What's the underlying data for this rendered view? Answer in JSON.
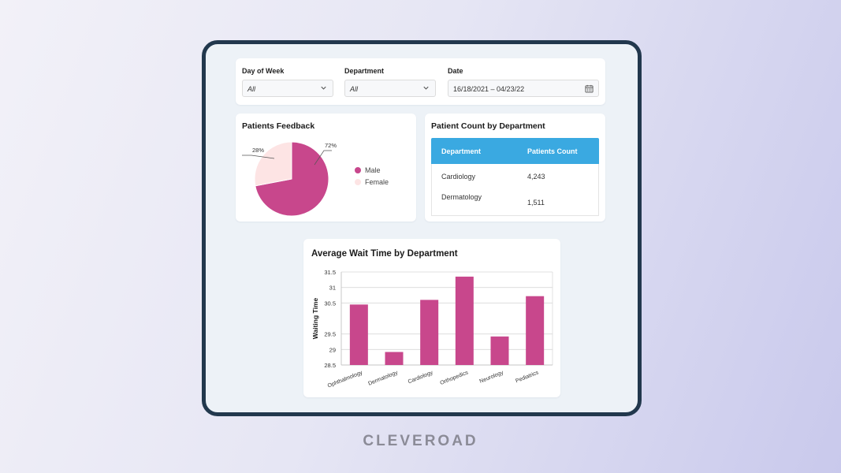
{
  "filters": {
    "day_of_week": {
      "label": "Day of Week",
      "value": "All"
    },
    "department": {
      "label": "Department",
      "value": "All"
    },
    "date": {
      "label": "Date",
      "value": "16/18/2021 – 04/23/22"
    }
  },
  "feedback": {
    "title": "Patients Feedback",
    "slices": [
      {
        "label": "Male",
        "percent": 72,
        "percent_label": "72%",
        "color": "#c8478c"
      },
      {
        "label": "Female",
        "percent": 28,
        "percent_label": "28%",
        "color": "#fde4e4"
      }
    ]
  },
  "patient_count": {
    "title": "Patient Count by Department",
    "columns": [
      "Department",
      "Patients Count"
    ],
    "rows": [
      {
        "department": "Cardiology",
        "count": "4,243"
      },
      {
        "department": "Dermatology",
        "count": "1,511"
      }
    ],
    "header_color": "#3aa9e1"
  },
  "chart_data": {
    "type": "bar",
    "title": "Average Wait Time by Department",
    "xlabel": "",
    "ylabel": "Waiting Time",
    "categories": [
      "Ophthalmology",
      "Dermatology",
      "Cardiology",
      "Orthopedics",
      "Neurology",
      "Pediatrics"
    ],
    "values": [
      30.45,
      28.92,
      30.6,
      31.35,
      29.42,
      30.72
    ],
    "ylim": [
      28.5,
      31.5
    ],
    "yticks": [
      "28.5",
      "29",
      "29.5",
      "30.5",
      "31",
      "31.5"
    ],
    "ytick_values": [
      28.5,
      29,
      29.5,
      30.5,
      31,
      31.5
    ],
    "grid": true,
    "color": "#c8478c"
  },
  "brand": "CLEVEROAD"
}
